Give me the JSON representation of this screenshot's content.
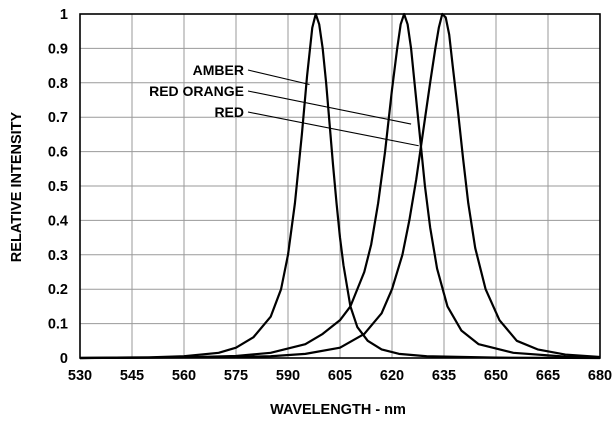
{
  "chart_data": {
    "type": "line",
    "xlabel": "WAVELENGTH - nm",
    "ylabel": "RELATIVE INTENSITY",
    "xlim": [
      530,
      680
    ],
    "ylim": [
      0,
      1
    ],
    "x_ticks": [
      530,
      545,
      560,
      575,
      590,
      605,
      620,
      635,
      650,
      665,
      680
    ],
    "y_ticks": [
      0,
      0.1,
      0.2,
      0.3,
      0.4,
      0.5,
      0.6,
      0.7,
      0.8,
      0.9,
      1
    ],
    "y_tick_labels": [
      "0",
      "0.1",
      "0.2",
      "0.3",
      "0.4",
      "0.5",
      "0.6",
      "0.7",
      "0.8",
      "0.9",
      "1"
    ],
    "grid": true,
    "series": [
      {
        "name": "AMBER",
        "points": [
          [
            530,
            0
          ],
          [
            550,
            0.002
          ],
          [
            560,
            0.005
          ],
          [
            570,
            0.015
          ],
          [
            575,
            0.03
          ],
          [
            580,
            0.06
          ],
          [
            585,
            0.12
          ],
          [
            588,
            0.2
          ],
          [
            590,
            0.3
          ],
          [
            592,
            0.45
          ],
          [
            594,
            0.65
          ],
          [
            595.5,
            0.82
          ],
          [
            597,
            0.96
          ],
          [
            598,
            1
          ],
          [
            599,
            0.97
          ],
          [
            600,
            0.9
          ],
          [
            601,
            0.8
          ],
          [
            602,
            0.68
          ],
          [
            603,
            0.56
          ],
          [
            604,
            0.45
          ],
          [
            605,
            0.35
          ],
          [
            606,
            0.27
          ],
          [
            608,
            0.15
          ],
          [
            610,
            0.09
          ],
          [
            613,
            0.05
          ],
          [
            617,
            0.025
          ],
          [
            622,
            0.012
          ],
          [
            630,
            0.005
          ],
          [
            650,
            0.001
          ],
          [
            680,
            0
          ]
        ]
      },
      {
        "name": "RED ORANGE",
        "points": [
          [
            530,
            0
          ],
          [
            560,
            0.002
          ],
          [
            575,
            0.006
          ],
          [
            585,
            0.015
          ],
          [
            595,
            0.04
          ],
          [
            600,
            0.07
          ],
          [
            605,
            0.11
          ],
          [
            608,
            0.15
          ],
          [
            612,
            0.25
          ],
          [
            614,
            0.33
          ],
          [
            616,
            0.45
          ],
          [
            618,
            0.6
          ],
          [
            620,
            0.78
          ],
          [
            621.5,
            0.9
          ],
          [
            622.5,
            0.97
          ],
          [
            623.5,
            1
          ],
          [
            624.5,
            0.97
          ],
          [
            625.5,
            0.9
          ],
          [
            626.5,
            0.8
          ],
          [
            628,
            0.65
          ],
          [
            629.5,
            0.5
          ],
          [
            631,
            0.38
          ],
          [
            633,
            0.26
          ],
          [
            636,
            0.15
          ],
          [
            640,
            0.08
          ],
          [
            645,
            0.04
          ],
          [
            655,
            0.015
          ],
          [
            670,
            0.004
          ],
          [
            680,
            0.001
          ]
        ]
      },
      {
        "name": "RED",
        "points": [
          [
            530,
            0
          ],
          [
            570,
            0.002
          ],
          [
            585,
            0.005
          ],
          [
            595,
            0.012
          ],
          [
            605,
            0.03
          ],
          [
            612,
            0.07
          ],
          [
            617,
            0.13
          ],
          [
            620,
            0.2
          ],
          [
            623,
            0.3
          ],
          [
            625,
            0.4
          ],
          [
            627,
            0.52
          ],
          [
            629,
            0.66
          ],
          [
            631,
            0.8
          ],
          [
            632.5,
            0.9
          ],
          [
            633.5,
            0.96
          ],
          [
            634.5,
            1
          ],
          [
            635.5,
            0.99
          ],
          [
            636.5,
            0.94
          ],
          [
            637.5,
            0.85
          ],
          [
            639,
            0.72
          ],
          [
            640.5,
            0.58
          ],
          [
            642,
            0.45
          ],
          [
            644,
            0.32
          ],
          [
            647,
            0.2
          ],
          [
            651,
            0.11
          ],
          [
            656,
            0.05
          ],
          [
            662,
            0.025
          ],
          [
            670,
            0.01
          ],
          [
            680,
            0.003
          ]
        ]
      }
    ],
    "annotations": [
      {
        "text": "AMBER",
        "series": "AMBER"
      },
      {
        "text": "RED ORANGE",
        "series": "RED ORANGE"
      },
      {
        "text": "RED",
        "series": "RED"
      }
    ]
  }
}
